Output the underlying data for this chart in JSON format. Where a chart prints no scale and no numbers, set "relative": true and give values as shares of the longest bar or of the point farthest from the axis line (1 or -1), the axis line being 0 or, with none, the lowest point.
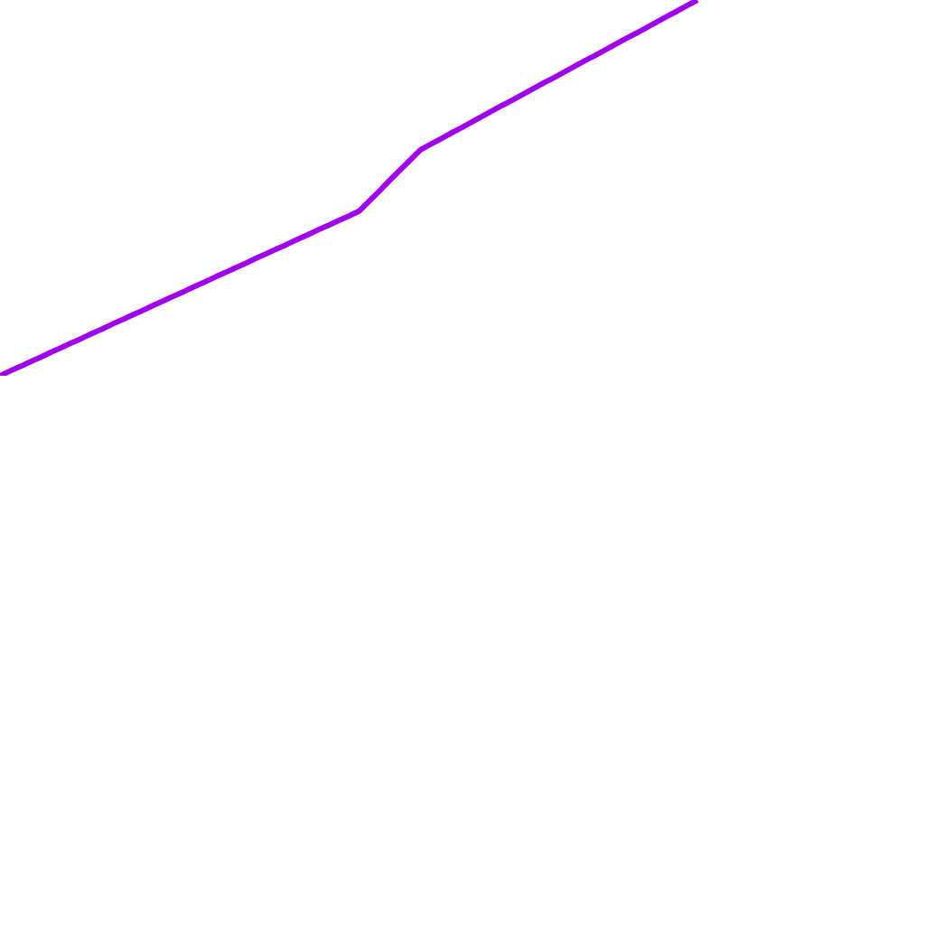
{
  "chart_data": {
    "type": "line",
    "relative": true,
    "categories": [
      null,
      null,
      null,
      null,
      null,
      null,
      null,
      null,
      null,
      null,
      null,
      null,
      null,
      null,
      null,
      null,
      null,
      null,
      null,
      null,
      null,
      null,
      null,
      null,
      null,
      null,
      null,
      null,
      null,
      null,
      null,
      null,
      null,
      null,
      null,
      null,
      null,
      null,
      null,
      null,
      null,
      null,
      null,
      null,
      null,
      null,
      null,
      null,
      null,
      null,
      null,
      null,
      null,
      null,
      null,
      null,
      null,
      null,
      null,
      null,
      null,
      null,
      null,
      null,
      null,
      null,
      null,
      null,
      null
    ],
    "series": [
      {
        "color": "#a000ee",
        "values": [
          0.0,
          0.013,
          0.025,
          0.038,
          0.05,
          0.063,
          0.075,
          0.088,
          0.1,
          0.113,
          0.125,
          0.138,
          0.15,
          0.163,
          0.175,
          0.188,
          0.2,
          0.213,
          0.225,
          0.238,
          0.25,
          0.263,
          0.275,
          0.288,
          0.3,
          0.313,
          0.325,
          0.338,
          0.35,
          0.363,
          0.375,
          0.388,
          0.4,
          0.413,
          0.425,
          0.438,
          0.465,
          0.492,
          0.52,
          0.547,
          0.574,
          0.601,
          0.616,
          0.631,
          0.646,
          0.66,
          0.675,
          0.69,
          0.705,
          0.72,
          0.734,
          0.749,
          0.764,
          0.779,
          0.793,
          0.808,
          0.823,
          0.838,
          0.852,
          0.867,
          0.882,
          0.897,
          0.911,
          0.926,
          0.941,
          0.956,
          0.97,
          0.985,
          1.0
        ]
      }
    ]
  }
}
